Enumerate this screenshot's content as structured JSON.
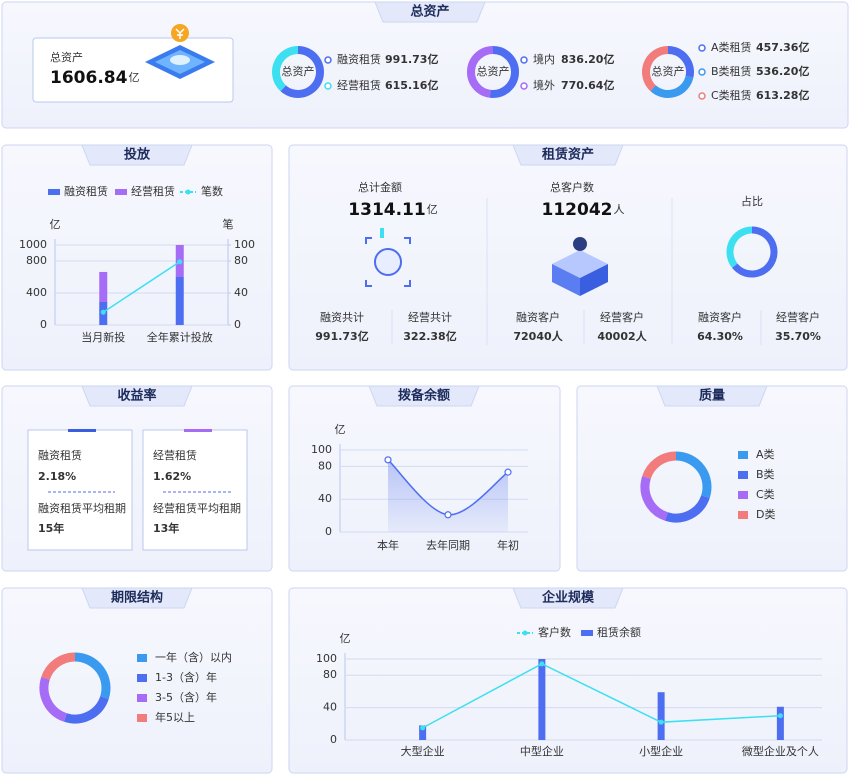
{
  "total_assets": {
    "title": "总资产",
    "label": "总资产",
    "value": "1606.84",
    "unit": "亿"
  },
  "lease_assets": {
    "title": "租赁资产",
    "amount": {
      "label": "总计金额",
      "value": "1314.11",
      "unit": "亿",
      "items": [
        {
          "label": "融资共计",
          "value": "991.73亿"
        },
        {
          "label": "经营共计",
          "value": "322.38亿"
        }
      ]
    },
    "customers": {
      "label": "总客户数",
      "value": "112042",
      "unit": "人",
      "items": [
        {
          "label": "融资客户",
          "value": "72040人"
        },
        {
          "label": "经营客户",
          "value": "40002人"
        }
      ]
    }
  },
  "yield": {
    "title": "收益率",
    "cards": [
      {
        "label": "融资租赁",
        "value": "2.18%",
        "term_label": "融资租赁平均租期",
        "term": "15年"
      },
      {
        "label": "经营租赁",
        "value": "1.62%",
        "term_label": "经营租赁平均租期",
        "term": "13年"
      }
    ]
  },
  "chart_data": [
    {
      "type": "pie",
      "center_label": "总资产",
      "categories": [
        "融资租赁",
        "经营租赁"
      ],
      "values": [
        991.73,
        615.16
      ],
      "value_labels": [
        "991.73亿",
        "615.16亿"
      ],
      "colors": [
        "#4e6ef2",
        "#3de0f0"
      ]
    },
    {
      "type": "pie",
      "center_label": "总资产",
      "categories": [
        "境内",
        "境外"
      ],
      "values": [
        836.2,
        770.64
      ],
      "value_labels": [
        "836.20亿",
        "770.64亿"
      ],
      "colors": [
        "#4e6ef2",
        "#a66cf5"
      ]
    },
    {
      "type": "pie",
      "center_label": "总资产",
      "categories": [
        "A类租赁",
        "B类租赁",
        "C类租赁"
      ],
      "values": [
        457.36,
        536.2,
        613.28
      ],
      "value_labels": [
        "457.36亿",
        "536.20亿",
        "613.28亿"
      ],
      "colors": [
        "#4e6ef2",
        "#3a9af0",
        "#f27b7b"
      ]
    },
    {
      "type": "bar",
      "title": "投放",
      "stacked": true,
      "y_label": "亿",
      "y2_label": "笔",
      "categories": [
        "当月新投",
        "全年累计投放"
      ],
      "series": [
        {
          "name": "融资租赁",
          "color": "#4e6ef2",
          "values": [
            288,
            600
          ]
        },
        {
          "name": "经营租赁",
          "color": "#a66cf5",
          "values": [
            375,
            400
          ]
        },
        {
          "name": "笔数",
          "type": "line",
          "axis": "y2",
          "color": "#3de0f0",
          "values": [
            16,
            79
          ]
        }
      ],
      "ylim": [
        0,
        1000
      ],
      "yticks": [
        0,
        400,
        800,
        1000
      ],
      "y2lim": [
        0,
        100
      ],
      "y2ticks": [
        0,
        40,
        80,
        100
      ],
      "grid": true
    },
    {
      "type": "pie",
      "title": "占比",
      "categories": [
        "融资客户",
        "经营客户"
      ],
      "values": [
        64.3,
        35.7
      ],
      "value_labels": [
        "64.30%",
        "35.70%"
      ],
      "colors": [
        "#4e6ef2",
        "#3de0f0"
      ]
    },
    {
      "type": "line",
      "title": "拨备余额",
      "y_label": "亿",
      "categories": [
        "本年",
        "去年同期",
        "年初"
      ],
      "series": [
        {
          "color": "#4e6ef2",
          "values": [
            88,
            21,
            73
          ]
        }
      ],
      "area": true,
      "smooth": true,
      "ylim": [
        0,
        100
      ],
      "yticks": [
        0,
        40,
        80,
        100
      ],
      "grid": true
    },
    {
      "type": "pie",
      "title": "质量",
      "categories": [
        "A类",
        "B类",
        "C类",
        "D类"
      ],
      "values": [
        30,
        25,
        25,
        20
      ],
      "colors": [
        "#3a9af0",
        "#4e6ef2",
        "#a66cf5",
        "#f27b7b"
      ]
    },
    {
      "type": "pie",
      "title": "期限结构",
      "categories": [
        "一年（含）以内",
        "1-3（含）年",
        "3-5（含）年",
        "年5以上"
      ],
      "values": [
        30,
        25,
        25,
        20
      ],
      "colors": [
        "#3a9af0",
        "#4e6ef2",
        "#a66cf5",
        "#f27b7b"
      ]
    },
    {
      "type": "bar",
      "title": "企业规模",
      "y_label": "亿",
      "categories": [
        "大型企业",
        "中型企业",
        "小型企业",
        "微型企业及个人"
      ],
      "series": [
        {
          "name": "客户数",
          "type": "line",
          "color": "#3de0f0",
          "values": [
            15,
            94,
            22,
            30
          ]
        },
        {
          "name": "租赁余额",
          "color": "#4e6ef2",
          "values": [
            18,
            100,
            59,
            41
          ]
        }
      ],
      "ylim": [
        0,
        100
      ],
      "yticks": [
        0,
        40,
        80,
        100
      ],
      "grid": true
    }
  ]
}
